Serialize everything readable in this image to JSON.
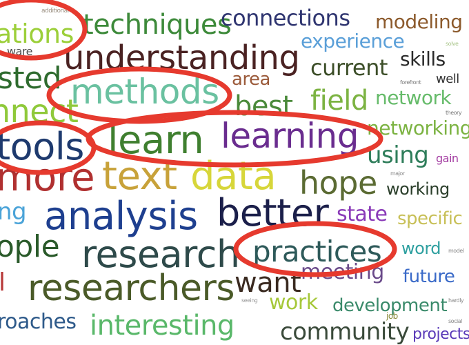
{
  "words": [
    {
      "text": "additional",
      "color": "#9a8f80"
    },
    {
      "text": "ations",
      "color": "#9ccf3a"
    },
    {
      "text": "techniques",
      "color": "#3d8a3a"
    },
    {
      "text": "connections",
      "color": "#2f3570"
    },
    {
      "text": "modeling",
      "color": "#8c5a2c"
    },
    {
      "text": "experience",
      "color": "#5a9fd8"
    },
    {
      "text": "solve",
      "color": "#a9c58a"
    },
    {
      "text": "ware",
      "color": "#4b4b4b"
    },
    {
      "text": "understanding",
      "color": "#4a2222"
    },
    {
      "text": "skills",
      "color": "#2a2a2a"
    },
    {
      "text": "sted",
      "color": "#2e6b2e"
    },
    {
      "text": "current",
      "color": "#3c4e28"
    },
    {
      "text": "area",
      "color": "#9b5a3a"
    },
    {
      "text": "forefront",
      "color": "#7a7a7a"
    },
    {
      "text": "well",
      "color": "#333333"
    },
    {
      "text": "methods",
      "color": "#6ac1a0"
    },
    {
      "text": "nnect",
      "color": "#8fc93a"
    },
    {
      "text": "best",
      "color": "#4a8a3a"
    },
    {
      "text": "field",
      "color": "#7cb342"
    },
    {
      "text": "network",
      "color": "#66bb6a"
    },
    {
      "text": "theory",
      "color": "#777777"
    },
    {
      "text": "tools",
      "color": "#1e3a6e"
    },
    {
      "text": "learn",
      "color": "#3f7f2f"
    },
    {
      "text": "learning",
      "color": "#6a2d8f"
    },
    {
      "text": "networking",
      "color": "#7cb342"
    },
    {
      "text": "using",
      "color": "#2e7d5a"
    },
    {
      "text": "gain",
      "color": "#a23aa0"
    },
    {
      "text": "major",
      "color": "#8a8a8a"
    },
    {
      "text": "more",
      "color": "#b03030"
    },
    {
      "text": "text",
      "color": "#c8a23a"
    },
    {
      "text": "data",
      "color": "#d7d63a"
    },
    {
      "text": "hope",
      "color": "#5b6b33"
    },
    {
      "text": "working",
      "color": "#2a3e2a"
    },
    {
      "text": "ng",
      "color": "#4aa3d8"
    },
    {
      "text": "analysis",
      "color": "#1e3f8f"
    },
    {
      "text": "better",
      "color": "#1b1f4a"
    },
    {
      "text": "state",
      "color": "#8a3ab8"
    },
    {
      "text": "specific",
      "color": "#c8c058"
    },
    {
      "text": "ople",
      "color": "#2a5a2a"
    },
    {
      "text": "research",
      "color": "#2e4a4a"
    },
    {
      "text": "practices",
      "color": "#2e5a5a"
    },
    {
      "text": "word",
      "color": "#2ea0a0"
    },
    {
      "text": "model",
      "color": "#888888"
    },
    {
      "text": "l",
      "color": "#b83a3a"
    },
    {
      "text": "researchers",
      "color": "#4a5a28"
    },
    {
      "text": "want",
      "color": "#3a2a20"
    },
    {
      "text": "meeting",
      "color": "#6a4a8a"
    },
    {
      "text": "future",
      "color": "#3a6ac8"
    },
    {
      "text": "seeing",
      "color": "#999999"
    },
    {
      "text": "work",
      "color": "#a6c83a"
    },
    {
      "text": "development",
      "color": "#3a8a6a"
    },
    {
      "text": "hardly",
      "color": "#888888"
    },
    {
      "text": "roaches",
      "color": "#2e5a8a"
    },
    {
      "text": "interesting",
      "color": "#5ab86a"
    },
    {
      "text": "community",
      "color": "#3a4a3a"
    },
    {
      "text": "projects",
      "color": "#5a3ab8"
    },
    {
      "text": "social",
      "color": "#888888"
    },
    {
      "text": "job",
      "color": "#8a8a3a"
    }
  ],
  "annotation_color": "#e63a2e"
}
